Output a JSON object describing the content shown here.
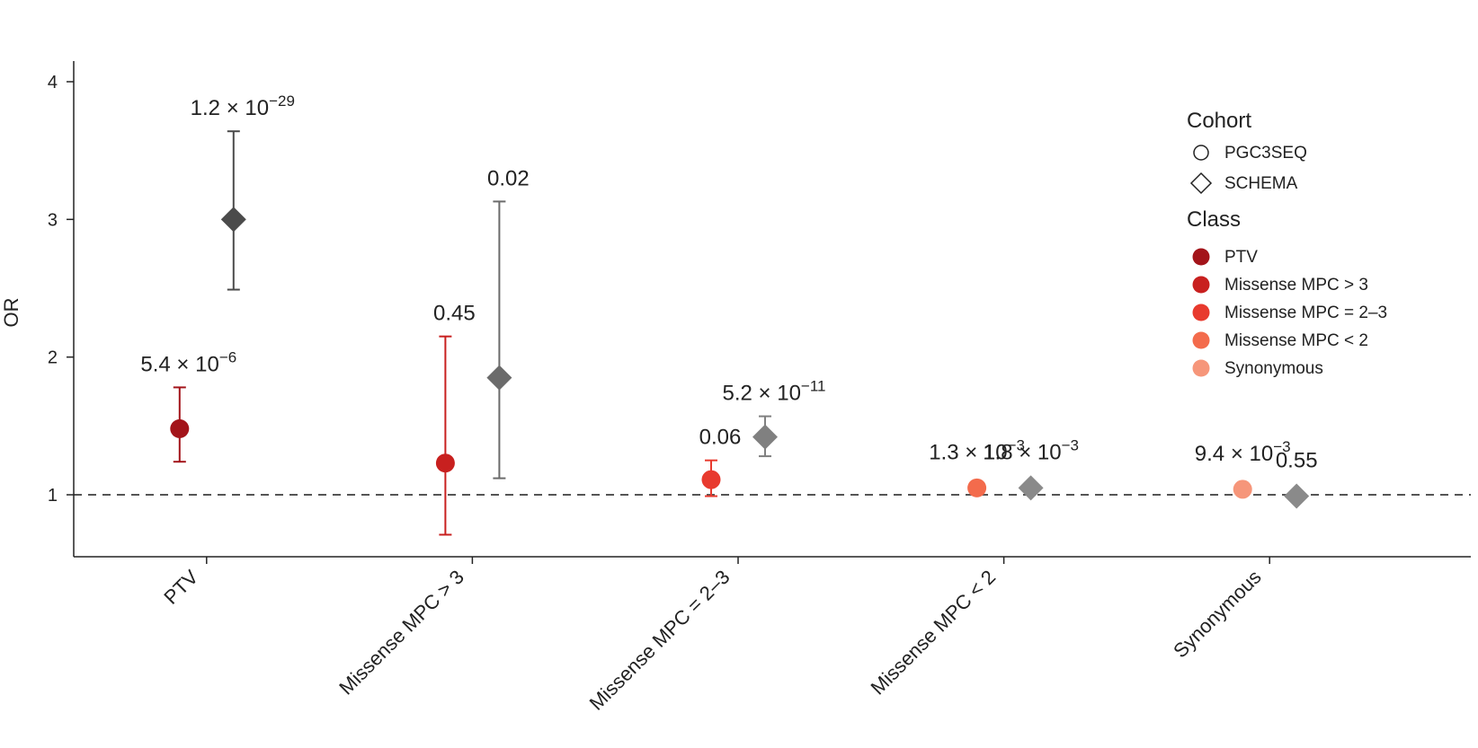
{
  "chart_data": {
    "type": "scatter",
    "ylabel": "OR",
    "ylim": [
      0.55,
      4.15
    ],
    "yticks": [
      "1",
      "2",
      "3",
      "4"
    ],
    "reference_line": 1,
    "categories": [
      "PTV",
      "Missense MPC > 3",
      "Missense MPC = 2–3",
      "Missense MPC < 2",
      "Synonymous"
    ],
    "series": [
      {
        "cohort": "PGC3SEQ",
        "marker": "circle",
        "points": [
          {
            "category": "PTV",
            "or": 1.48,
            "ci": [
              1.24,
              1.78
            ],
            "p_mant": "5.4",
            "p_exp": "−6",
            "color": "#a3141a"
          },
          {
            "category": "Missense MPC > 3",
            "or": 1.23,
            "ci": [
              0.71,
              2.15
            ],
            "p_text": "0.45",
            "color": "#c8201f"
          },
          {
            "category": "Missense MPC = 2–3",
            "or": 1.11,
            "ci": [
              0.99,
              1.25
            ],
            "p_text": "0.06",
            "color": "#e83a2e"
          },
          {
            "category": "Missense MPC < 2",
            "or": 1.05,
            "ci": null,
            "p_mant": "1.3",
            "p_exp": "−3",
            "color": "#f36b4c"
          },
          {
            "category": "Synonymous",
            "or": 1.04,
            "ci": null,
            "p_mant": "9.4",
            "p_exp": "−3",
            "color": "#f6967a"
          }
        ]
      },
      {
        "cohort": "SCHEMA",
        "marker": "diamond",
        "points": [
          {
            "category": "PTV",
            "or": 3.0,
            "ci": [
              2.49,
              3.64
            ],
            "p_mant": "1.2",
            "p_exp": "−29",
            "color": "#4b4b4b"
          },
          {
            "category": "Missense MPC > 3",
            "or": 1.85,
            "ci": [
              1.12,
              3.13
            ],
            "p_text": "0.02",
            "color": "#6b6b6b"
          },
          {
            "category": "Missense MPC = 2–3",
            "or": 1.42,
            "ci": [
              1.28,
              1.57
            ],
            "p_mant": "5.2",
            "p_exp": "−11",
            "color": "#808080"
          },
          {
            "category": "Missense MPC < 2",
            "or": 1.05,
            "ci": null,
            "p_mant": "1.8",
            "p_exp": "−3",
            "color": "#8a8a8a"
          },
          {
            "category": "Synonymous",
            "or": 0.99,
            "ci": null,
            "p_text": "0.55",
            "color": "#8a8a8a"
          }
        ]
      }
    ],
    "legend": {
      "position": "right",
      "cohort_title": "Cohort",
      "cohort_items": [
        {
          "label": "PGC3SEQ",
          "marker": "circle"
        },
        {
          "label": "SCHEMA",
          "marker": "diamond"
        }
      ],
      "class_title": "Class",
      "class_items": [
        {
          "label": "PTV",
          "color": "#a3141a"
        },
        {
          "label": "Missense MPC > 3",
          "color": "#c8201f"
        },
        {
          "label": "Missense MPC = 2–3",
          "color": "#e83a2e"
        },
        {
          "label": "Missense MPC < 2",
          "color": "#f36b4c"
        },
        {
          "label": "Synonymous",
          "color": "#f6967a"
        }
      ]
    }
  }
}
